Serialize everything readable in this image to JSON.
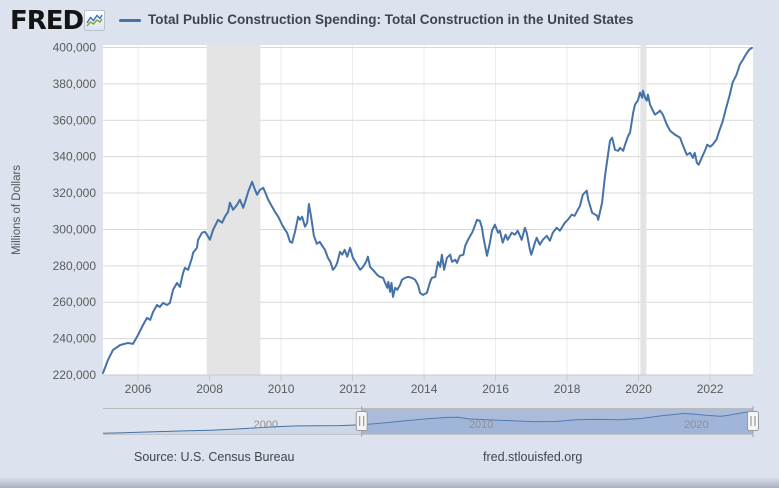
{
  "header": {
    "logo": "FRED",
    "logo_reg": "®",
    "title": "Total Public Construction Spending: Total Construction in the United States"
  },
  "colors": {
    "line": "#4572a7",
    "page_bg": "#dde3ee",
    "plot_bg": "#ffffff",
    "grid_h": "#d9d9d9",
    "grid_v": "#ececec",
    "axis_line": "#c9c9c9",
    "recession_band": "#e4e4e4",
    "tick_text": "#5b5b5b",
    "nav_area_fill": "#ccd7e8",
    "nav_mask": "rgba(102,133,194,0.42)",
    "nav_label": "#909090"
  },
  "chart_data": {
    "type": "line",
    "title": "Total Public Construction Spending: Total Construction in the United States",
    "xlabel": "",
    "ylabel": "Millions of Dollars",
    "legend_position": "top",
    "grid": true,
    "x_range": [
      2005.02,
      2023.2
    ],
    "y_range": [
      220000,
      400000
    ],
    "yticks": [
      220000,
      240000,
      260000,
      280000,
      300000,
      320000,
      340000,
      360000,
      380000,
      400000
    ],
    "xticks": [
      2006,
      2008,
      2010,
      2012,
      2014,
      2016,
      2018,
      2020,
      2022
    ],
    "recessions": [
      [
        2007.92,
        2009.42
      ],
      [
        2020.05,
        2020.22
      ]
    ],
    "series": [
      {
        "name": "Total Public Construction Spending: Total Construction in the United States",
        "points": [
          [
            2005.02,
            221100
          ],
          [
            2005.16,
            228300
          ],
          [
            2005.3,
            233800
          ],
          [
            2005.5,
            236500
          ],
          [
            2005.72,
            237600
          ],
          [
            2005.86,
            237100
          ],
          [
            2006.0,
            242000
          ],
          [
            2006.14,
            247500
          ],
          [
            2006.25,
            251400
          ],
          [
            2006.34,
            250300
          ],
          [
            2006.42,
            254700
          ],
          [
            2006.53,
            258500
          ],
          [
            2006.61,
            257400
          ],
          [
            2006.7,
            259600
          ],
          [
            2006.81,
            258500
          ],
          [
            2006.89,
            259600
          ],
          [
            2006.98,
            266800
          ],
          [
            2007.09,
            270600
          ],
          [
            2007.17,
            268400
          ],
          [
            2007.26,
            276100
          ],
          [
            2007.31,
            278900
          ],
          [
            2007.4,
            277800
          ],
          [
            2007.51,
            284400
          ],
          [
            2007.54,
            287200
          ],
          [
            2007.65,
            289900
          ],
          [
            2007.68,
            294300
          ],
          [
            2007.79,
            298200
          ],
          [
            2007.87,
            298700
          ],
          [
            2007.93,
            297100
          ],
          [
            2008.01,
            294300
          ],
          [
            2008.1,
            299800
          ],
          [
            2008.21,
            304200
          ],
          [
            2008.24,
            305300
          ],
          [
            2008.35,
            303700
          ],
          [
            2008.43,
            307000
          ],
          [
            2008.52,
            309700
          ],
          [
            2008.57,
            314700
          ],
          [
            2008.66,
            310800
          ],
          [
            2008.77,
            313600
          ],
          [
            2008.85,
            316300
          ],
          [
            2008.94,
            311900
          ],
          [
            2008.99,
            314700
          ],
          [
            2009.08,
            320700
          ],
          [
            2009.19,
            326200
          ],
          [
            2009.27,
            321800
          ],
          [
            2009.33,
            319100
          ],
          [
            2009.41,
            321800
          ],
          [
            2009.5,
            322900
          ],
          [
            2009.55,
            320700
          ],
          [
            2009.64,
            316300
          ],
          [
            2009.75,
            312500
          ],
          [
            2009.83,
            309700
          ],
          [
            2009.92,
            307000
          ],
          [
            2010.03,
            302600
          ],
          [
            2010.11,
            299800
          ],
          [
            2010.17,
            298200
          ],
          [
            2010.25,
            293200
          ],
          [
            2010.31,
            292700
          ],
          [
            2010.39,
            298700
          ],
          [
            2010.48,
            307000
          ],
          [
            2010.53,
            305300
          ],
          [
            2010.59,
            307000
          ],
          [
            2010.67,
            301500
          ],
          [
            2010.73,
            303700
          ],
          [
            2010.78,
            314000
          ],
          [
            2010.84,
            307000
          ],
          [
            2010.92,
            296500
          ],
          [
            2011.0,
            292100
          ],
          [
            2011.08,
            293200
          ],
          [
            2011.15,
            291000
          ],
          [
            2011.23,
            288800
          ],
          [
            2011.31,
            284400
          ],
          [
            2011.38,
            282200
          ],
          [
            2011.45,
            277800
          ],
          [
            2011.52,
            279400
          ],
          [
            2011.57,
            281600
          ],
          [
            2011.65,
            287700
          ],
          [
            2011.71,
            286100
          ],
          [
            2011.78,
            288800
          ],
          [
            2011.85,
            285000
          ],
          [
            2011.93,
            289900
          ],
          [
            2012.01,
            284400
          ],
          [
            2012.13,
            280500
          ],
          [
            2012.21,
            277800
          ],
          [
            2012.29,
            279400
          ],
          [
            2012.38,
            282200
          ],
          [
            2012.43,
            285000
          ],
          [
            2012.49,
            279400
          ],
          [
            2012.57,
            277800
          ],
          [
            2012.69,
            275000
          ],
          [
            2012.77,
            273900
          ],
          [
            2012.85,
            273400
          ],
          [
            2012.97,
            267900
          ],
          [
            2013.0,
            271200
          ],
          [
            2013.05,
            265700
          ],
          [
            2013.09,
            270600
          ],
          [
            2013.13,
            262900
          ],
          [
            2013.19,
            267900
          ],
          [
            2013.25,
            266800
          ],
          [
            2013.33,
            269500
          ],
          [
            2013.38,
            272300
          ],
          [
            2013.47,
            273400
          ],
          [
            2013.55,
            273900
          ],
          [
            2013.66,
            273400
          ],
          [
            2013.75,
            272300
          ],
          [
            2013.83,
            269500
          ],
          [
            2013.89,
            265100
          ],
          [
            2013.97,
            264000
          ],
          [
            2014.08,
            265100
          ],
          [
            2014.17,
            271200
          ],
          [
            2014.22,
            273400
          ],
          [
            2014.31,
            273900
          ],
          [
            2014.39,
            282200
          ],
          [
            2014.45,
            279400
          ],
          [
            2014.5,
            286100
          ],
          [
            2014.56,
            277800
          ],
          [
            2014.64,
            284400
          ],
          [
            2014.73,
            286100
          ],
          [
            2014.78,
            282200
          ],
          [
            2014.87,
            283300
          ],
          [
            2014.92,
            281600
          ],
          [
            2015.0,
            285500
          ],
          [
            2015.1,
            286100
          ],
          [
            2015.15,
            291000
          ],
          [
            2015.23,
            294300
          ],
          [
            2015.34,
            298200
          ],
          [
            2015.37,
            299300
          ],
          [
            2015.48,
            305300
          ],
          [
            2015.56,
            304800
          ],
          [
            2015.62,
            300900
          ],
          [
            2015.65,
            296500
          ],
          [
            2015.76,
            285500
          ],
          [
            2015.84,
            292700
          ],
          [
            2015.9,
            299300
          ],
          [
            2015.98,
            302600
          ],
          [
            2016.07,
            298200
          ],
          [
            2016.12,
            299300
          ],
          [
            2016.2,
            292700
          ],
          [
            2016.28,
            297100
          ],
          [
            2016.34,
            294300
          ],
          [
            2016.45,
            298200
          ],
          [
            2016.54,
            297100
          ],
          [
            2016.62,
            299300
          ],
          [
            2016.73,
            294300
          ],
          [
            2016.82,
            300900
          ],
          [
            2016.87,
            298200
          ],
          [
            2016.96,
            288900
          ],
          [
            2017.0,
            286100
          ],
          [
            2017.1,
            292700
          ],
          [
            2017.15,
            295400
          ],
          [
            2017.24,
            291600
          ],
          [
            2017.32,
            294300
          ],
          [
            2017.43,
            296500
          ],
          [
            2017.52,
            293800
          ],
          [
            2017.6,
            298200
          ],
          [
            2017.71,
            300900
          ],
          [
            2017.8,
            299300
          ],
          [
            2017.94,
            303700
          ],
          [
            2018.02,
            305300
          ],
          [
            2018.13,
            308100
          ],
          [
            2018.21,
            307500
          ],
          [
            2018.3,
            310800
          ],
          [
            2018.36,
            313000
          ],
          [
            2018.44,
            319100
          ],
          [
            2018.55,
            321300
          ],
          [
            2018.59,
            316400
          ],
          [
            2018.7,
            309200
          ],
          [
            2018.84,
            307500
          ],
          [
            2018.87,
            305300
          ],
          [
            2018.98,
            314700
          ],
          [
            2019.06,
            329500
          ],
          [
            2019.2,
            348700
          ],
          [
            2019.26,
            350400
          ],
          [
            2019.34,
            343800
          ],
          [
            2019.43,
            343200
          ],
          [
            2019.48,
            344900
          ],
          [
            2019.57,
            343200
          ],
          [
            2019.62,
            346500
          ],
          [
            2019.71,
            351500
          ],
          [
            2019.76,
            353100
          ],
          [
            2019.85,
            364200
          ],
          [
            2019.9,
            368600
          ],
          [
            2019.98,
            370800
          ],
          [
            2020.04,
            375200
          ],
          [
            2020.1,
            372400
          ],
          [
            2020.12,
            376300
          ],
          [
            2020.18,
            372400
          ],
          [
            2020.23,
            370800
          ],
          [
            2020.26,
            374100
          ],
          [
            2020.32,
            368600
          ],
          [
            2020.4,
            365300
          ],
          [
            2020.46,
            363100
          ],
          [
            2020.54,
            364200
          ],
          [
            2020.6,
            365300
          ],
          [
            2020.68,
            363100
          ],
          [
            2020.79,
            357600
          ],
          [
            2020.88,
            354200
          ],
          [
            2021.02,
            352000
          ],
          [
            2021.16,
            350400
          ],
          [
            2021.21,
            347600
          ],
          [
            2021.3,
            343200
          ],
          [
            2021.35,
            341000
          ],
          [
            2021.44,
            342100
          ],
          [
            2021.52,
            339300
          ],
          [
            2021.57,
            342100
          ],
          [
            2021.63,
            336600
          ],
          [
            2021.68,
            335600
          ],
          [
            2021.78,
            340000
          ],
          [
            2021.87,
            343900
          ],
          [
            2021.92,
            346600
          ],
          [
            2022.0,
            345500
          ],
          [
            2022.07,
            346600
          ],
          [
            2022.18,
            349400
          ],
          [
            2022.27,
            354900
          ],
          [
            2022.35,
            359300
          ],
          [
            2022.46,
            367500
          ],
          [
            2022.55,
            374100
          ],
          [
            2022.63,
            380700
          ],
          [
            2022.74,
            385100
          ],
          [
            2022.83,
            390600
          ],
          [
            2022.92,
            393400
          ],
          [
            2023.0,
            396100
          ],
          [
            2023.1,
            398900
          ],
          [
            2023.17,
            399800
          ]
        ]
      }
    ]
  },
  "navigator": {
    "x_range": [
      1993,
      2023.2
    ],
    "y_range": [
      110000,
      410000
    ],
    "selected": [
      2005.02,
      2023.2
    ],
    "labels": [
      2000,
      2010,
      2020
    ],
    "points": [
      [
        1993,
        120000
      ],
      [
        1994,
        127000
      ],
      [
        1995,
        136000
      ],
      [
        1996,
        143000
      ],
      [
        1997,
        151000
      ],
      [
        1998,
        159000
      ],
      [
        1999,
        171000
      ],
      [
        2000,
        186000
      ],
      [
        2001,
        203000
      ],
      [
        2002,
        213000
      ],
      [
        2003,
        216000
      ],
      [
        2004,
        217000
      ],
      [
        2005,
        228000
      ],
      [
        2006,
        250000
      ],
      [
        2007,
        277000
      ],
      [
        2008,
        303000
      ],
      [
        2009,
        322000
      ],
      [
        2009.5,
        323000
      ],
      [
        2010,
        303000
      ],
      [
        2011,
        290000
      ],
      [
        2012,
        280000
      ],
      [
        2013,
        268000
      ],
      [
        2014,
        270000
      ],
      [
        2015,
        293000
      ],
      [
        2016,
        297000
      ],
      [
        2017,
        293000
      ],
      [
        2018,
        308000
      ],
      [
        2019,
        345000
      ],
      [
        2020,
        372000
      ],
      [
        2020.5,
        364000
      ],
      [
        2021,
        350000
      ],
      [
        2021.7,
        336000
      ],
      [
        2022,
        346000
      ],
      [
        2022.5,
        372000
      ],
      [
        2023.17,
        400000
      ]
    ]
  },
  "footer": {
    "source": "Source: U.S. Census Bureau",
    "site": "fred.stlouisfed.org"
  }
}
